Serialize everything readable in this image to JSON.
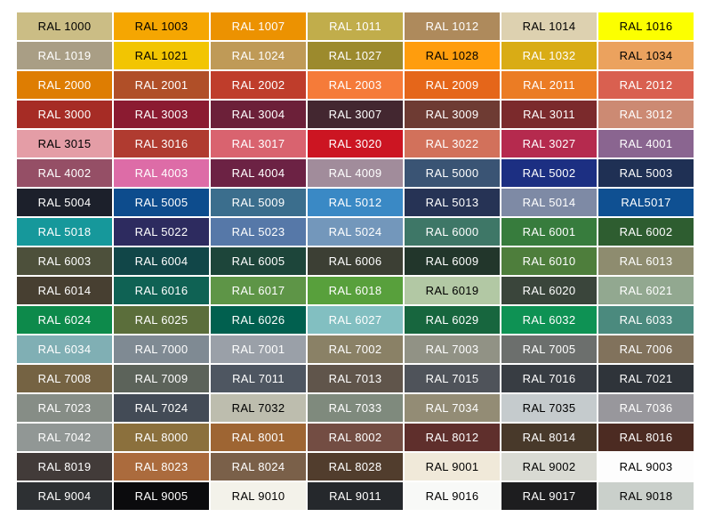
{
  "page": {
    "background": "#ffffff"
  },
  "chart_data": {
    "type": "table",
    "columns": 7,
    "rows": 17,
    "cells": [
      {
        "label": "RAL 1000",
        "bg": "#CBBD85",
        "fg": "#000000"
      },
      {
        "label": "RAL 1003",
        "bg": "#F5A602",
        "fg": "#000000"
      },
      {
        "label": "RAL 1007",
        "bg": "#EC9201",
        "fg": "#ffffff"
      },
      {
        "label": "RAL 1011",
        "bg": "#C1AD4B",
        "fg": "#ffffff"
      },
      {
        "label": "RAL 1012",
        "bg": "#AE8A5C",
        "fg": "#ffffff"
      },
      {
        "label": "RAL 1014",
        "bg": "#DDD1B0",
        "fg": "#000000"
      },
      {
        "label": "RAL 1016",
        "bg": "#FCFF00",
        "fg": "#000000"
      },
      {
        "label": "RAL 1019",
        "bg": "#A99E85",
        "fg": "#ffffff"
      },
      {
        "label": "RAL 1021",
        "bg": "#F2C502",
        "fg": "#000000"
      },
      {
        "label": "RAL 1024",
        "bg": "#BF9A57",
        "fg": "#ffffff"
      },
      {
        "label": "RAL 1027",
        "bg": "#9C8A2D",
        "fg": "#ffffff"
      },
      {
        "label": "RAL 1028",
        "bg": "#FF9D0D",
        "fg": "#000000"
      },
      {
        "label": "RAL 1032",
        "bg": "#D9AC15",
        "fg": "#ffffff"
      },
      {
        "label": "RAL 1034",
        "bg": "#EBA25E",
        "fg": "#000000"
      },
      {
        "label": "RAL 2000",
        "bg": "#DE7D02",
        "fg": "#ffffff"
      },
      {
        "label": "RAL 2001",
        "bg": "#B04F28",
        "fg": "#ffffff"
      },
      {
        "label": "RAL 2002",
        "bg": "#BF3D2B",
        "fg": "#ffffff"
      },
      {
        "label": "RAL 2003",
        "bg": "#F57B39",
        "fg": "#ffffff"
      },
      {
        "label": "RAL 2009",
        "bg": "#E5661A",
        "fg": "#ffffff"
      },
      {
        "label": "RAL 2011",
        "bg": "#EB7C24",
        "fg": "#ffffff"
      },
      {
        "label": "RAL 2012",
        "bg": "#D96050",
        "fg": "#ffffff"
      },
      {
        "label": "RAL 3000",
        "bg": "#A62C25",
        "fg": "#ffffff"
      },
      {
        "label": "RAL 3003",
        "bg": "#8B1B31",
        "fg": "#ffffff"
      },
      {
        "label": "RAL 3004",
        "bg": "#6C2039",
        "fg": "#ffffff"
      },
      {
        "label": "RAL 3007",
        "bg": "#432730",
        "fg": "#ffffff"
      },
      {
        "label": "RAL 3009",
        "bg": "#6E3B33",
        "fg": "#ffffff"
      },
      {
        "label": "RAL 3011",
        "bg": "#7B2A2C",
        "fg": "#ffffff"
      },
      {
        "label": "RAL 3012",
        "bg": "#CC8A73",
        "fg": "#ffffff"
      },
      {
        "label": "RAL 3015",
        "bg": "#E49DA6",
        "fg": "#000000"
      },
      {
        "label": "RAL 3016",
        "bg": "#B03B30",
        "fg": "#ffffff"
      },
      {
        "label": "RAL 3017",
        "bg": "#D9636F",
        "fg": "#ffffff"
      },
      {
        "label": "RAL 3020",
        "bg": "#CC1522",
        "fg": "#ffffff"
      },
      {
        "label": "RAL 3022",
        "bg": "#D2715B",
        "fg": "#ffffff"
      },
      {
        "label": "RAL 3027",
        "bg": "#B52A4E",
        "fg": "#ffffff"
      },
      {
        "label": "RAL 4001",
        "bg": "#8A6590",
        "fg": "#ffffff"
      },
      {
        "label": "RAL 4002",
        "bg": "#954F66",
        "fg": "#ffffff"
      },
      {
        "label": "RAL 4003",
        "bg": "#DD6CA7",
        "fg": "#ffffff"
      },
      {
        "label": "RAL 4004",
        "bg": "#6C2244",
        "fg": "#ffffff"
      },
      {
        "label": "RAL 4009",
        "bg": "#A18C9B",
        "fg": "#ffffff"
      },
      {
        "label": "RAL 5000",
        "bg": "#3A5474",
        "fg": "#ffffff"
      },
      {
        "label": "RAL 5002",
        "bg": "#1C2F82",
        "fg": "#ffffff"
      },
      {
        "label": "RAL 5003",
        "bg": "#1F3054",
        "fg": "#ffffff"
      },
      {
        "label": "RAL 5004",
        "bg": "#1C202B",
        "fg": "#ffffff"
      },
      {
        "label": "RAL 5005",
        "bg": "#0D4C8D",
        "fg": "#ffffff"
      },
      {
        "label": "RAL 5009",
        "bg": "#3B6E8D",
        "fg": "#ffffff"
      },
      {
        "label": "RAL 5012",
        "bg": "#3A89C5",
        "fg": "#ffffff"
      },
      {
        "label": "RAL 5013",
        "bg": "#263355",
        "fg": "#ffffff"
      },
      {
        "label": "RAL 5014",
        "bg": "#7E8AA5",
        "fg": "#ffffff"
      },
      {
        "label": "RAL5017",
        "bg": "#0F5092",
        "fg": "#ffffff"
      },
      {
        "label": "RAL 5018",
        "bg": "#16989B",
        "fg": "#ffffff"
      },
      {
        "label": "RAL 5022",
        "bg": "#2D2B5F",
        "fg": "#ffffff"
      },
      {
        "label": "RAL 5023",
        "bg": "#5678A8",
        "fg": "#ffffff"
      },
      {
        "label": "RAL 5024",
        "bg": "#7397BB",
        "fg": "#ffffff"
      },
      {
        "label": "RAL 6000",
        "bg": "#3E7767",
        "fg": "#ffffff"
      },
      {
        "label": "RAL 6001",
        "bg": "#377C3D",
        "fg": "#ffffff"
      },
      {
        "label": "RAL 6002",
        "bg": "#2E5D30",
        "fg": "#ffffff"
      },
      {
        "label": "RAL 6003",
        "bg": "#4D503B",
        "fg": "#ffffff"
      },
      {
        "label": "RAL 6004",
        "bg": "#114648",
        "fg": "#ffffff"
      },
      {
        "label": "RAL 6005",
        "bg": "#1D453A",
        "fg": "#ffffff"
      },
      {
        "label": "RAL 6006",
        "bg": "#3C3F34",
        "fg": "#ffffff"
      },
      {
        "label": "RAL 6009",
        "bg": "#22362B",
        "fg": "#ffffff"
      },
      {
        "label": "RAL 6010",
        "bg": "#4E7E3C",
        "fg": "#ffffff"
      },
      {
        "label": "RAL 6013",
        "bg": "#8E8C6F",
        "fg": "#ffffff"
      },
      {
        "label": "RAL 6014",
        "bg": "#473F31",
        "fg": "#ffffff"
      },
      {
        "label": "RAL 6016",
        "bg": "#0F6254",
        "fg": "#ffffff"
      },
      {
        "label": "RAL 6017",
        "bg": "#5E9547",
        "fg": "#ffffff"
      },
      {
        "label": "RAL 6018",
        "bg": "#58A03C",
        "fg": "#ffffff"
      },
      {
        "label": "RAL 6019",
        "bg": "#B2C8A4",
        "fg": "#000000"
      },
      {
        "label": "RAL 6020",
        "bg": "#3A453B",
        "fg": "#ffffff"
      },
      {
        "label": "RAL 6021",
        "bg": "#92A890",
        "fg": "#ffffff"
      },
      {
        "label": "RAL 6024",
        "bg": "#0D8A4B",
        "fg": "#ffffff"
      },
      {
        "label": "RAL 6025",
        "bg": "#5B6E3B",
        "fg": "#ffffff"
      },
      {
        "label": "RAL 6026",
        "bg": "#01604F",
        "fg": "#ffffff"
      },
      {
        "label": "RAL 6027",
        "bg": "#82BFC1",
        "fg": "#ffffff"
      },
      {
        "label": "RAL 6029",
        "bg": "#17663E",
        "fg": "#ffffff"
      },
      {
        "label": "RAL 6032",
        "bg": "#0E9254",
        "fg": "#ffffff"
      },
      {
        "label": "RAL 6033",
        "bg": "#4B8A7E",
        "fg": "#ffffff"
      },
      {
        "label": "RAL 6034",
        "bg": "#80AFB4",
        "fg": "#ffffff"
      },
      {
        "label": "RAL 7000",
        "bg": "#7F8A93",
        "fg": "#ffffff"
      },
      {
        "label": "RAL 7001",
        "bg": "#9AA0A8",
        "fg": "#ffffff"
      },
      {
        "label": "RAL 7002",
        "bg": "#8A8166",
        "fg": "#ffffff"
      },
      {
        "label": "RAL 7003",
        "bg": "#919285",
        "fg": "#ffffff"
      },
      {
        "label": "RAL 7005",
        "bg": "#6C6F6D",
        "fg": "#ffffff"
      },
      {
        "label": "RAL 7006",
        "bg": "#81725C",
        "fg": "#ffffff"
      },
      {
        "label": "RAL 7008",
        "bg": "#756343",
        "fg": "#ffffff"
      },
      {
        "label": "RAL 7009",
        "bg": "#5C635A",
        "fg": "#ffffff"
      },
      {
        "label": "RAL 7011",
        "bg": "#4E5661",
        "fg": "#ffffff"
      },
      {
        "label": "RAL 7013",
        "bg": "#60554B",
        "fg": "#ffffff"
      },
      {
        "label": "RAL 7015",
        "bg": "#4F535A",
        "fg": "#ffffff"
      },
      {
        "label": "RAL 7016",
        "bg": "#383D43",
        "fg": "#ffffff"
      },
      {
        "label": "RAL 7021",
        "bg": "#2F343A",
        "fg": "#ffffff"
      },
      {
        "label": "RAL 7023",
        "bg": "#868D86",
        "fg": "#ffffff"
      },
      {
        "label": "RAL 7024",
        "bg": "#434B56",
        "fg": "#ffffff"
      },
      {
        "label": "RAL 7032",
        "bg": "#BDBDAE",
        "fg": "#000000"
      },
      {
        "label": "RAL 7033",
        "bg": "#7F8A7D",
        "fg": "#ffffff"
      },
      {
        "label": "RAL 7034",
        "bg": "#938C75",
        "fg": "#ffffff"
      },
      {
        "label": "RAL 7035",
        "bg": "#C5CBCD",
        "fg": "#000000"
      },
      {
        "label": "RAL 7036",
        "bg": "#98979C",
        "fg": "#ffffff"
      },
      {
        "label": "RAL 7042",
        "bg": "#919795",
        "fg": "#ffffff"
      },
      {
        "label": "RAL 8000",
        "bg": "#8B703D",
        "fg": "#ffffff"
      },
      {
        "label": "RAL 8001",
        "bg": "#9E6533",
        "fg": "#ffffff"
      },
      {
        "label": "RAL 8002",
        "bg": "#734D43",
        "fg": "#ffffff"
      },
      {
        "label": "RAL 8012",
        "bg": "#5F2F2C",
        "fg": "#ffffff"
      },
      {
        "label": "RAL 8014",
        "bg": "#48392A",
        "fg": "#ffffff"
      },
      {
        "label": "RAL 8016",
        "bg": "#4C2B22",
        "fg": "#ffffff"
      },
      {
        "label": "RAL 8019",
        "bg": "#423B39",
        "fg": "#ffffff"
      },
      {
        "label": "RAL 8023",
        "bg": "#AB6B3D",
        "fg": "#ffffff"
      },
      {
        "label": "RAL 8024",
        "bg": "#7A6049",
        "fg": "#ffffff"
      },
      {
        "label": "RAL 8028",
        "bg": "#513D2D",
        "fg": "#ffffff"
      },
      {
        "label": "RAL 9001",
        "bg": "#F0E9D9",
        "fg": "#000000"
      },
      {
        "label": "RAL 9002",
        "bg": "#D9DAD3",
        "fg": "#000000"
      },
      {
        "label": "RAL 9003",
        "bg": "#FDFDFD",
        "fg": "#000000"
      },
      {
        "label": "RAL 9004",
        "bg": "#2D3033",
        "fg": "#ffffff"
      },
      {
        "label": "RAL 9005",
        "bg": "#0B0B0D",
        "fg": "#ffffff"
      },
      {
        "label": "RAL 9010",
        "bg": "#F3F2EA",
        "fg": "#000000"
      },
      {
        "label": "RAL 9011",
        "bg": "#25282C",
        "fg": "#ffffff"
      },
      {
        "label": "RAL 9016",
        "bg": "#F8F9F7",
        "fg": "#000000"
      },
      {
        "label": "RAL 9017",
        "bg": "#1D1D1F",
        "fg": "#ffffff"
      },
      {
        "label": "RAL 9018",
        "bg": "#CAD0CB",
        "fg": "#000000"
      }
    ]
  }
}
